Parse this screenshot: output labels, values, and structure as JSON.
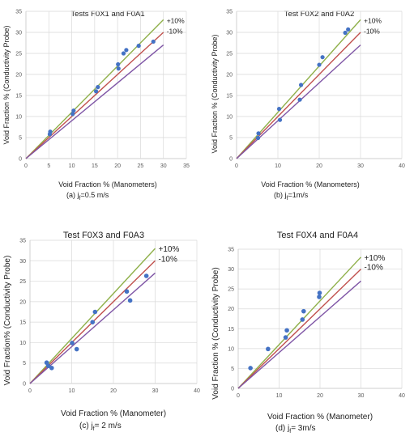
{
  "captions": [
    {
      "prefix": "(a)  j",
      "sub": "f",
      "suffix": "=0.5 m/s"
    },
    {
      "prefix": "(b) j",
      "sub": "f",
      "suffix": "=1m/s"
    },
    {
      "prefix": "(c) j",
      "sub": "f",
      "suffix": "= 2 m/s"
    },
    {
      "prefix": "(d)   j",
      "sub": "f",
      "suffix": "= 3m/s"
    }
  ],
  "colors": {
    "points": "#4472c4",
    "plus10": "#8fb04a",
    "identity": "#c0504d",
    "minus10": "#7f56a6",
    "grid": "#d9d9d9",
    "tick": "#595959"
  },
  "chart_data": [
    {
      "type": "scatter",
      "title": "Tests F0X1 and F0A1",
      "xlabel": "Void Fraction % (Manometers)",
      "ylabel": "Void Fraction % (Conductivity Probe)",
      "xlim": [
        0,
        35
      ],
      "ylim": [
        0,
        35
      ],
      "xticks": [
        0,
        5,
        10,
        15,
        20,
        25,
        30,
        35
      ],
      "yticks": [
        0,
        5,
        10,
        15,
        20,
        25,
        30,
        35
      ],
      "grid": true,
      "line_labels": {
        "plus": "+10%",
        "minus": "-10%"
      },
      "series": [
        {
          "points": [
            [
              5.2,
              5.8
            ],
            [
              5.3,
              6.4
            ],
            [
              10.2,
              10.6
            ],
            [
              10.4,
              11.4
            ],
            [
              15.3,
              16.0
            ],
            [
              15.7,
              17.0
            ],
            [
              20.1,
              22.4
            ],
            [
              20.2,
              21.4
            ],
            [
              21.3,
              25.0
            ],
            [
              21.9,
              25.8
            ],
            [
              24.6,
              26.8
            ],
            [
              27.8,
              27.8
            ]
          ]
        }
      ],
      "reference_lines": [
        {
          "name": "+10%",
          "slope": 1.1,
          "x": [
            0,
            30
          ]
        },
        {
          "name": "identity",
          "slope": 1.0,
          "x": [
            0,
            30
          ]
        },
        {
          "name": "-10%",
          "slope": 0.9,
          "x": [
            0,
            30
          ]
        }
      ]
    },
    {
      "type": "scatter",
      "title": "Test F0X2 and F0A2",
      "xlabel": "Void Fraction % (Manometers)",
      "ylabel": "Void Fraction % (Conductivity Probe)",
      "xlim": [
        0,
        40
      ],
      "ylim": [
        0,
        35
      ],
      "xticks": [
        0,
        10,
        20,
        30,
        40
      ],
      "yticks": [
        0,
        5,
        10,
        15,
        20,
        25,
        30,
        35
      ],
      "grid": true,
      "line_labels": {
        "plus": "+10%",
        "minus": "-10%"
      },
      "series": [
        {
          "points": [
            [
              5.2,
              4.9
            ],
            [
              5.3,
              6.0
            ],
            [
              10.5,
              9.2
            ],
            [
              10.3,
              11.8
            ],
            [
              15.3,
              14.0
            ],
            [
              15.6,
              17.5
            ],
            [
              20.0,
              22.3
            ],
            [
              20.8,
              24.1
            ],
            [
              26.3,
              29.9
            ],
            [
              27.0,
              30.7
            ]
          ]
        }
      ],
      "reference_lines": [
        {
          "name": "+10%",
          "slope": 1.1,
          "x": [
            0,
            30
          ]
        },
        {
          "name": "identity",
          "slope": 1.0,
          "x": [
            0,
            30
          ]
        },
        {
          "name": "-10%",
          "slope": 0.9,
          "x": [
            0,
            30
          ]
        }
      ]
    },
    {
      "type": "scatter",
      "title": "Test F0X3 and F0A3",
      "xlabel": "Void Fraction % (Manometer)",
      "ylabel": "Void Fraction% (Conductivity Probe)",
      "xlim": [
        0,
        40
      ],
      "ylim": [
        0,
        35
      ],
      "xticks": [
        0,
        10,
        20,
        30,
        40
      ],
      "yticks": [
        0,
        5,
        10,
        15,
        20,
        25,
        30,
        35
      ],
      "grid": true,
      "line_labels": {
        "plus": "+10%",
        "minus": "-10%"
      },
      "series": [
        {
          "points": [
            [
              4.0,
              5.1
            ],
            [
              4.4,
              4.3
            ],
            [
              5.2,
              3.8
            ],
            [
              10.1,
              9.9
            ],
            [
              11.2,
              8.4
            ],
            [
              15.0,
              15.0
            ],
            [
              15.6,
              17.5
            ],
            [
              23.2,
              22.5
            ],
            [
              24.0,
              20.3
            ],
            [
              27.9,
              26.3
            ]
          ]
        }
      ],
      "reference_lines": [
        {
          "name": "+10%",
          "slope": 1.1,
          "x": [
            0,
            30
          ]
        },
        {
          "name": "identity",
          "slope": 1.0,
          "x": [
            0,
            30
          ]
        },
        {
          "name": "-10%",
          "slope": 0.9,
          "x": [
            0,
            30
          ]
        }
      ]
    },
    {
      "type": "scatter",
      "title": "Test F0X4 and F0A4",
      "xlabel": "Void Fraction % (Manometer)",
      "ylabel": "Void Fraction % (Conductivity Probe)",
      "xlim": [
        0,
        40
      ],
      "ylim": [
        0,
        35
      ],
      "xticks": [
        0,
        10,
        20,
        30,
        40
      ],
      "yticks": [
        0,
        5,
        10,
        15,
        20,
        25,
        30,
        35
      ],
      "grid": true,
      "line_labels": {
        "plus": "+10%",
        "minus": "-10%"
      },
      "series": [
        {
          "points": [
            [
              3.0,
              5.1
            ],
            [
              7.3,
              9.9
            ],
            [
              11.6,
              12.8
            ],
            [
              11.9,
              14.6
            ],
            [
              15.7,
              17.3
            ],
            [
              16.0,
              19.4
            ],
            [
              19.8,
              23.0
            ],
            [
              19.9,
              24.0
            ]
          ]
        }
      ],
      "reference_lines": [
        {
          "name": "+10%",
          "slope": 1.1,
          "x": [
            0,
            30
          ]
        },
        {
          "name": "identity",
          "slope": 1.0,
          "x": [
            0,
            30
          ]
        },
        {
          "name": "-10%",
          "slope": 0.9,
          "x": [
            0,
            30
          ]
        }
      ]
    }
  ]
}
